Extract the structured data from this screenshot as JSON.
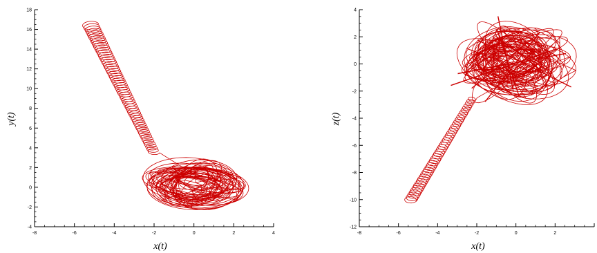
{
  "chart_data": [
    {
      "type": "line",
      "xlabel": "x(t)",
      "ylabel": "y(t)",
      "xlim": [
        -8,
        4
      ],
      "ylim": [
        -4,
        18
      ],
      "xticks": [
        -8,
        -6,
        -4,
        -2,
        0,
        2,
        4
      ],
      "yticks": [
        -4,
        -2,
        0,
        2,
        4,
        6,
        8,
        10,
        12,
        14,
        16,
        18
      ],
      "xticklabels": [
        "-8",
        "-6",
        "-4",
        "-2",
        "0",
        "2",
        "4"
      ],
      "yticklabels": [
        "-4",
        "-2",
        "0",
        "2",
        "4",
        "6",
        "8",
        "10",
        "12",
        "14",
        "16",
        "18"
      ],
      "grid": false,
      "color": "#cc0000",
      "series": [
        {
          "path": {
            "start": [
              -5.2,
              16.5
            ],
            "end": [
              -2.0,
              3.5
            ],
            "loops": 55
          },
          "cluster": {
            "center": [
              0.2,
              0.3
            ],
            "extent_x": [
              -2.5,
              2.5
            ],
            "extent_y": [
              -2.2,
              2.4
            ],
            "loops": 45
          }
        }
      ]
    },
    {
      "type": "line",
      "xlabel": "x(t)",
      "ylabel": "z(t)",
      "xlim": [
        -8,
        4
      ],
      "ylim": [
        -12,
        4
      ],
      "xticks": [
        -8,
        -6,
        -4,
        -2,
        0,
        2,
        4
      ],
      "yticks": [
        -12,
        -10,
        -8,
        -6,
        -4,
        -2,
        0,
        2,
        4
      ],
      "xticklabels": [
        "-8",
        "-6",
        "-4",
        "-2",
        "0",
        "2",
        ""
      ],
      "yticklabels": [
        "-12",
        "-10",
        "-8",
        "-6",
        "-4",
        "-2",
        "0",
        "2",
        "4"
      ],
      "grid": false,
      "color": "#cc0000",
      "series": [
        {
          "path": {
            "start": [
              -5.4,
              -10.1
            ],
            "end": [
              -2.2,
              -2.5
            ],
            "loops": 45
          },
          "cluster": {
            "center": [
              -0.1,
              0.2
            ],
            "extent_x": [
              -2.4,
              2.5
            ],
            "extent_y": [
              -3.0,
              3.4
            ],
            "loops": 55
          }
        }
      ]
    }
  ]
}
